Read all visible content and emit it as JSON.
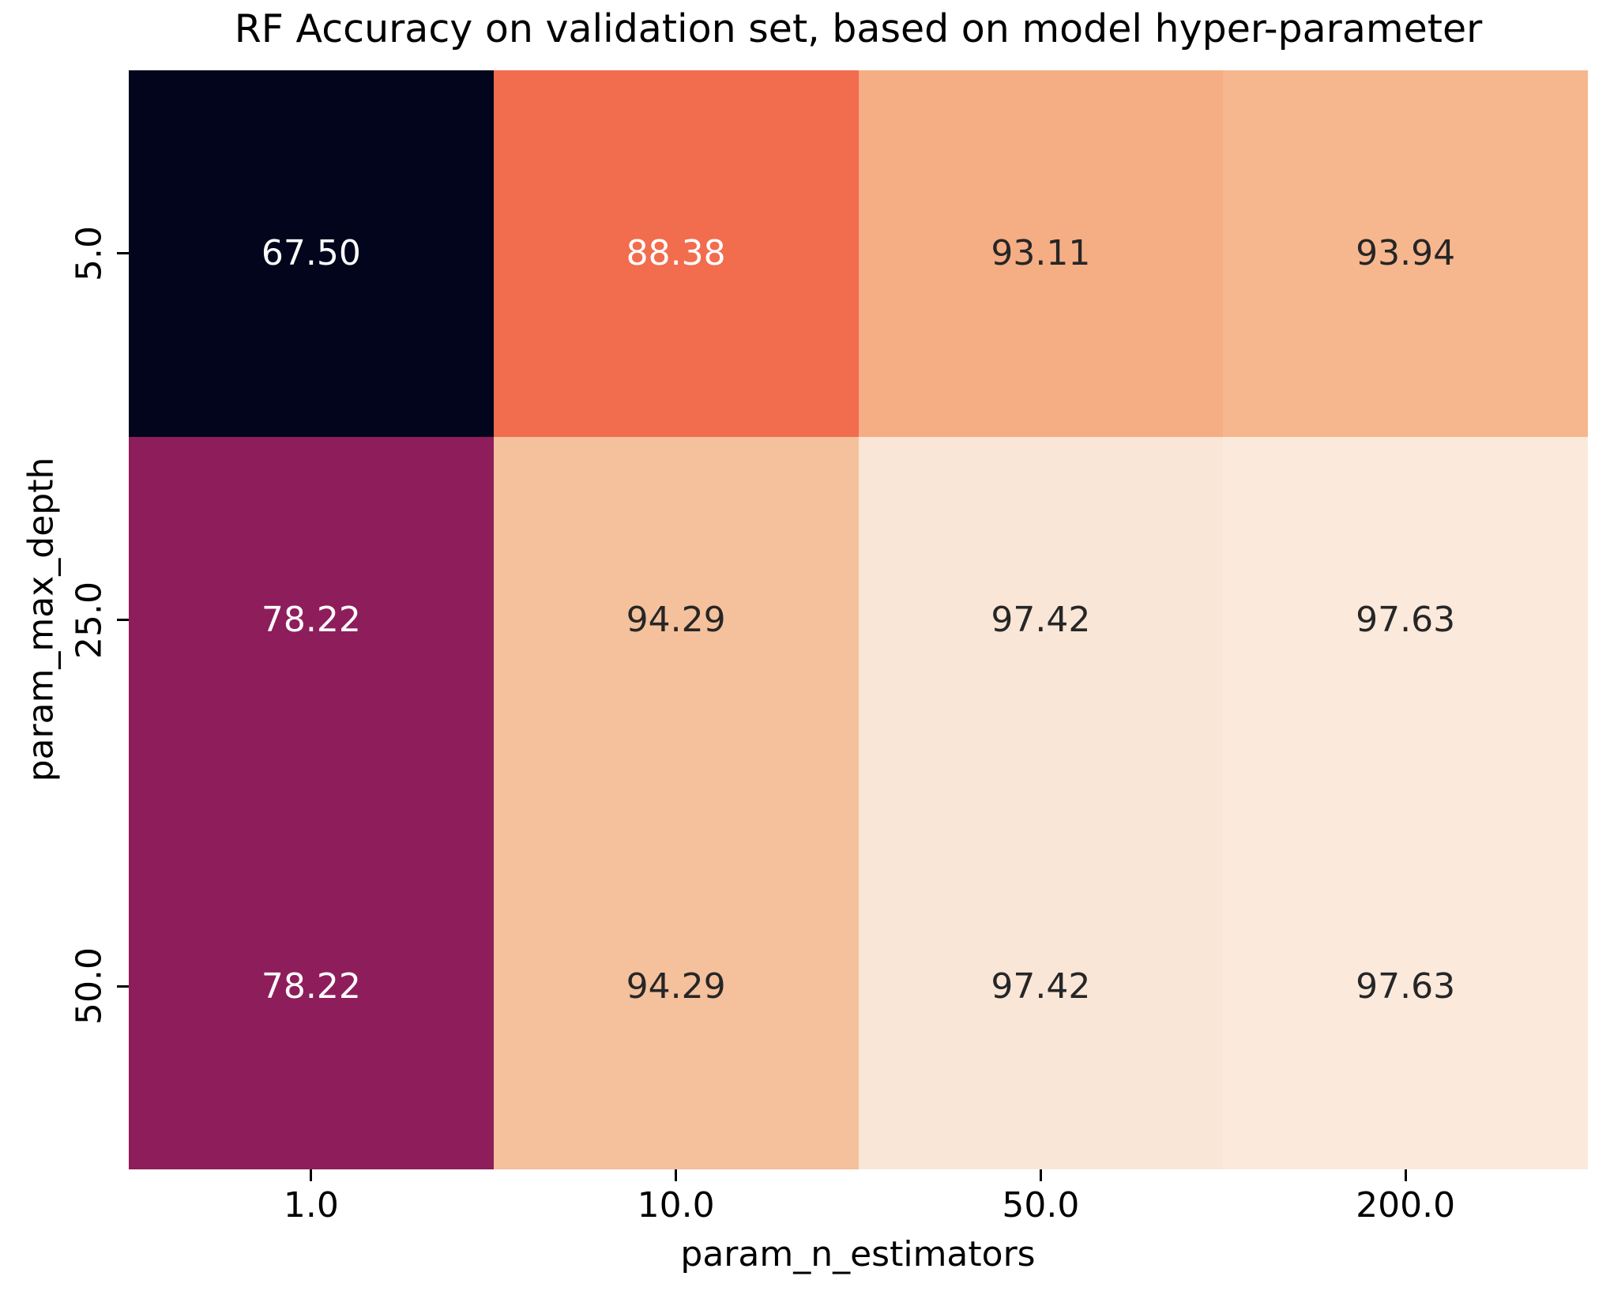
{
  "chart_data": {
    "type": "heatmap",
    "title": "RF Accuracy on validation set, based on model hyper-parameter",
    "xlabel": "param_n_estimators",
    "ylabel": "param_max_depth",
    "x_ticklabels": [
      "1.0",
      "10.0",
      "50.0",
      "200.0"
    ],
    "y_ticklabels": [
      "5.0",
      "25.0",
      "50.0"
    ],
    "values": [
      [
        67.5,
        88.38,
        93.11,
        93.94
      ],
      [
        78.22,
        94.29,
        97.42,
        97.63
      ],
      [
        78.22,
        94.29,
        97.42,
        97.63
      ]
    ],
    "cell_labels": [
      [
        "67.50",
        "88.38",
        "93.11",
        "93.94"
      ],
      [
        "78.22",
        "94.29",
        "97.42",
        "97.63"
      ],
      [
        "78.22",
        "94.29",
        "97.42",
        "97.63"
      ]
    ],
    "cell_colors": [
      [
        "#03051c",
        "#f26c4e",
        "#f5ad84",
        "#f6b78f"
      ],
      [
        "#8e1d5b",
        "#f5c09c",
        "#f9e6d7",
        "#fbe9dc"
      ],
      [
        "#8e1d5b",
        "#f5c09c",
        "#f9e6d7",
        "#fbe9dc"
      ]
    ],
    "cell_text_colors": [
      [
        "#ffffff",
        "#ffffff",
        "#262626",
        "#262626"
      ],
      [
        "#ffffff",
        "#262626",
        "#262626",
        "#262626"
      ],
      [
        "#ffffff",
        "#262626",
        "#262626",
        "#262626"
      ]
    ],
    "colormap": "rocket",
    "vmin": 67.5,
    "vmax": 97.63,
    "grid": false,
    "legend": false
  }
}
